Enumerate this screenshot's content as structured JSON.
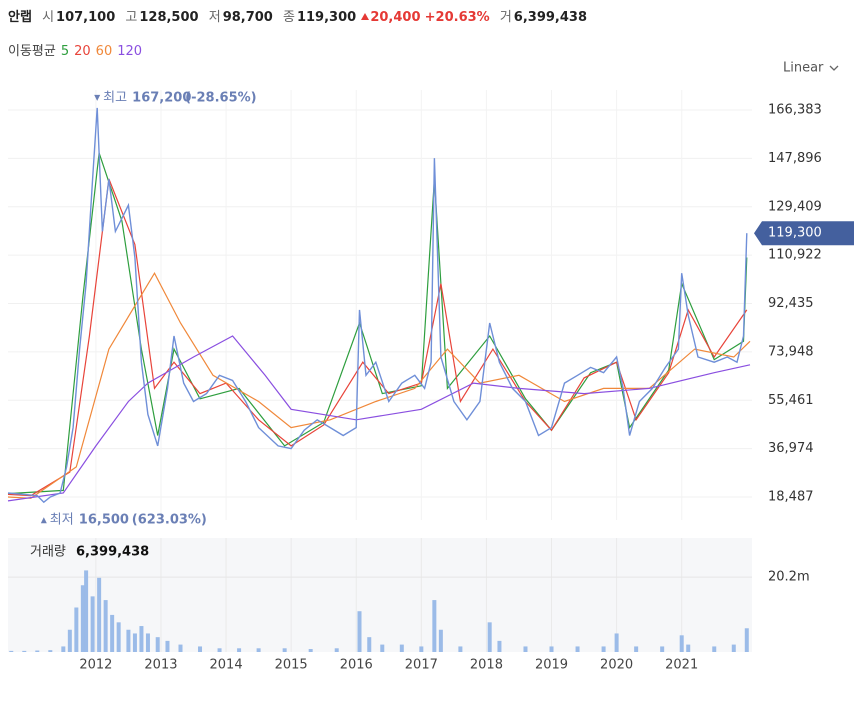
{
  "header": {
    "name": "안랩",
    "open_label": "시",
    "open": "107,100",
    "high_label": "고",
    "high": "128,500",
    "low_label": "저",
    "low": "98,700",
    "close_label": "종",
    "close": "119,300",
    "change": "20,400",
    "change_pct": "+20.63%",
    "volume_label": "거",
    "volume": "6,399,438"
  },
  "scale_mode": "Linear",
  "chart_data": [
    {
      "type": "line",
      "legend_title": "이동평균",
      "xlim": [
        2010.65,
        2022.08
      ],
      "ylim": [
        9700,
        174030
      ],
      "yticks": [
        {
          "value": 166383,
          "label": "166,383"
        },
        {
          "value": 147896,
          "label": "147,896"
        },
        {
          "value": 129409,
          "label": "129,409"
        },
        {
          "value": 110922,
          "label": "110,922"
        },
        {
          "value": 92435,
          "label": "92,435"
        },
        {
          "value": 73948,
          "label": "73,948"
        },
        {
          "value": 55461,
          "label": "55,461"
        },
        {
          "value": 36974,
          "label": "36,974"
        },
        {
          "value": 18487,
          "label": "18,487"
        }
      ],
      "grid": true,
      "last_price": {
        "value": 119300,
        "label": "119,300"
      },
      "price": {
        "color": "#6f8fd8",
        "x": [
          2010.65,
          2010.9,
          2011.1,
          2011.2,
          2011.3,
          2011.45,
          2011.55,
          2011.65,
          2011.75,
          2011.85,
          2011.95,
          2012.02,
          2012.1,
          2012.2,
          2012.3,
          2012.4,
          2012.5,
          2012.6,
          2012.7,
          2012.8,
          2012.95,
          2013.1,
          2013.2,
          2013.35,
          2013.5,
          2013.7,
          2013.9,
          2014.1,
          2014.3,
          2014.5,
          2014.8,
          2015.0,
          2015.2,
          2015.4,
          2015.6,
          2015.8,
          2016.0,
          2016.05,
          2016.15,
          2016.3,
          2016.5,
          2016.7,
          2016.9,
          2017.05,
          2017.15,
          2017.2,
          2017.3,
          2017.5,
          2017.7,
          2017.9,
          2018.05,
          2018.2,
          2018.4,
          2018.6,
          2018.8,
          2019.0,
          2019.2,
          2019.4,
          2019.6,
          2019.8,
          2020.0,
          2020.1,
          2020.2,
          2020.35,
          2020.55,
          2020.75,
          2020.95,
          2021.0,
          2021.1,
          2021.25,
          2021.5,
          2021.7,
          2021.85,
          2021.95,
          2022.0
        ],
        "values": [
          20000,
          19500,
          19000,
          16500,
          18500,
          20000,
          30000,
          45000,
          75000,
          100000,
          140000,
          167200,
          120000,
          140000,
          120000,
          125000,
          130000,
          110000,
          70000,
          50000,
          38000,
          60000,
          80000,
          62000,
          55000,
          58000,
          65000,
          63000,
          55000,
          45000,
          38000,
          37000,
          44000,
          48000,
          45000,
          42000,
          45000,
          90000,
          65000,
          70000,
          55000,
          62000,
          65000,
          60000,
          70000,
          148000,
          72000,
          55000,
          48000,
          55000,
          85000,
          70000,
          60000,
          55000,
          42000,
          45000,
          62000,
          65000,
          68000,
          66000,
          72000,
          60000,
          42000,
          55000,
          60000,
          68000,
          75000,
          104000,
          88000,
          72000,
          70000,
          72000,
          70000,
          80000,
          119300
        ]
      },
      "series": [
        {
          "name": "5",
          "color": "#2e9e3e",
          "x": [
            2010.65,
            2011.5,
            2011.8,
            2012.05,
            2012.4,
            2012.7,
            2012.95,
            2013.2,
            2013.6,
            2014.2,
            2014.9,
            2015.5,
            2016.05,
            2016.4,
            2017.0,
            2017.2,
            2017.4,
            2018.05,
            2018.6,
            2019.0,
            2019.6,
            2020.0,
            2020.2,
            2020.8,
            2021.0,
            2021.5,
            2021.95,
            2022.0
          ],
          "values": [
            19800,
            21000,
            95000,
            150000,
            124000,
            75000,
            42000,
            75000,
            56000,
            60000,
            38000,
            47000,
            85000,
            58000,
            61000,
            140000,
            60000,
            80000,
            56000,
            44000,
            66000,
            70000,
            45000,
            67000,
            100000,
            71000,
            78000,
            110000
          ]
        },
        {
          "name": "20",
          "color": "#e8443a",
          "x": [
            2010.65,
            2011.0,
            2011.6,
            2011.9,
            2012.2,
            2012.6,
            2012.9,
            2013.2,
            2013.6,
            2014.0,
            2014.5,
            2015.0,
            2015.5,
            2016.1,
            2016.5,
            2017.0,
            2017.3,
            2017.6,
            2018.1,
            2018.6,
            2019.0,
            2019.5,
            2020.0,
            2020.3,
            2020.8,
            2021.1,
            2021.5,
            2022.0
          ],
          "values": [
            19500,
            19000,
            28000,
            80000,
            140000,
            115000,
            60000,
            70000,
            58000,
            62000,
            48000,
            38000,
            46000,
            70000,
            58000,
            62000,
            100000,
            55000,
            75000,
            55000,
            44000,
            64000,
            70000,
            48000,
            66000,
            90000,
            72000,
            90000
          ]
        },
        {
          "name": "60",
          "color": "#f0883a",
          "x": [
            2010.65,
            2011.0,
            2011.7,
            2012.2,
            2012.9,
            2013.3,
            2013.8,
            2014.5,
            2015.0,
            2015.6,
            2016.3,
            2016.9,
            2017.4,
            2017.9,
            2018.5,
            2019.2,
            2019.8,
            2020.5,
            2021.2,
            2021.8,
            2022.05
          ],
          "values": [
            18500,
            18000,
            30000,
            75000,
            104000,
            85000,
            65000,
            55000,
            45000,
            48000,
            55000,
            60000,
            75000,
            62000,
            65000,
            55000,
            60000,
            60000,
            75000,
            72000,
            78000
          ]
        },
        {
          "name": "120",
          "color": "#8a4fe0",
          "x": [
            2010.65,
            2011.5,
            2012.0,
            2012.5,
            2012.8,
            2013.5,
            2014.1,
            2014.6,
            2015.0,
            2016.0,
            2017.0,
            2017.8,
            2018.5,
            2019.5,
            2020.5,
            2021.5,
            2022.05
          ],
          "values": [
            17000,
            20000,
            38000,
            55000,
            62000,
            72000,
            80000,
            65000,
            52000,
            48000,
            52000,
            62000,
            60000,
            58000,
            60000,
            66000,
            69000
          ]
        }
      ],
      "annotations": [
        {
          "label": "최고",
          "x": 2012.02,
          "value": {
            "value": 167200,
            "label": "167,200"
          },
          "change": "(-28.65%)"
        },
        {
          "label": "최저",
          "x": 2011.2,
          "value": {
            "value": 16500,
            "label": "16,500"
          },
          "change": "(623.03%)"
        }
      ]
    },
    {
      "type": "bar",
      "title": "거래량",
      "last": "6,399,438",
      "color": "#9bbbe8",
      "xlim": [
        2010.65,
        2022.08
      ],
      "ylim": [
        0,
        30200000
      ],
      "yticks": [
        {
          "value": 20200000,
          "label": "20.2m"
        }
      ],
      "xticks": [
        2012,
        2013,
        2014,
        2015,
        2016,
        2017,
        2018,
        2019,
        2020,
        2021
      ],
      "x": [
        2010.7,
        2010.9,
        2011.1,
        2011.3,
        2011.5,
        2011.6,
        2011.7,
        2011.8,
        2011.85,
        2011.95,
        2012.05,
        2012.15,
        2012.25,
        2012.35,
        2012.5,
        2012.6,
        2012.7,
        2012.8,
        2012.95,
        2013.1,
        2013.3,
        2013.6,
        2013.9,
        2014.2,
        2014.5,
        2014.9,
        2015.3,
        2015.7,
        2016.05,
        2016.2,
        2016.4,
        2016.7,
        2017.0,
        2017.2,
        2017.3,
        2017.6,
        2018.05,
        2018.2,
        2018.6,
        2019.0,
        2019.4,
        2019.8,
        2020.0,
        2020.3,
        2020.7,
        2021.0,
        2021.1,
        2021.5,
        2021.8,
        2022.0
      ],
      "values": [
        300000,
        300000,
        400000,
        500000,
        1500000,
        6000000,
        12000000,
        18000000,
        22000000,
        15000000,
        20000000,
        14000000,
        10000000,
        8000000,
        6000000,
        5000000,
        7000000,
        5000000,
        4000000,
        3000000,
        2000000,
        1500000,
        1000000,
        1000000,
        1000000,
        1000000,
        800000,
        1000000,
        11000000,
        4000000,
        2000000,
        2000000,
        1500000,
        14000000,
        6000000,
        1500000,
        8000000,
        3000000,
        1500000,
        1500000,
        1500000,
        1500000,
        5000000,
        1500000,
        1500000,
        4500000,
        2000000,
        1500000,
        2000000,
        6399438
      ]
    }
  ]
}
